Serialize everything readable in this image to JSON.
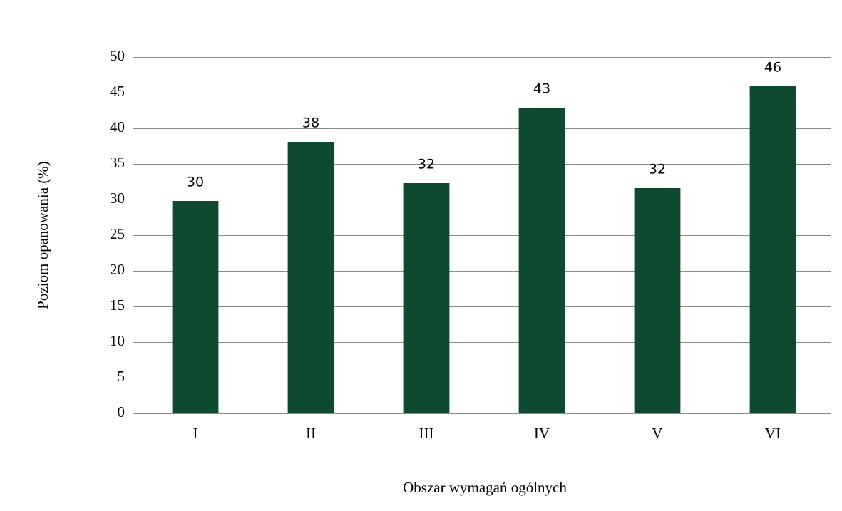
{
  "chart_data": {
    "type": "bar",
    "categories": [
      "I",
      "II",
      "III",
      "IV",
      "V",
      "VI"
    ],
    "values": [
      29.8,
      38.1,
      32.3,
      42.9,
      31.6,
      45.9
    ],
    "value_labels": [
      "30",
      "38",
      "32",
      "43",
      "32",
      "46"
    ],
    "color": "#0d4a30",
    "ylim": [
      0,
      50
    ],
    "yticks": [
      0,
      5,
      10,
      15,
      20,
      25,
      30,
      35,
      40,
      45,
      50
    ],
    "grid": true,
    "y_label": "Poziom opanowania (%)",
    "x_label": "Obszar wymagań ogólnych"
  }
}
